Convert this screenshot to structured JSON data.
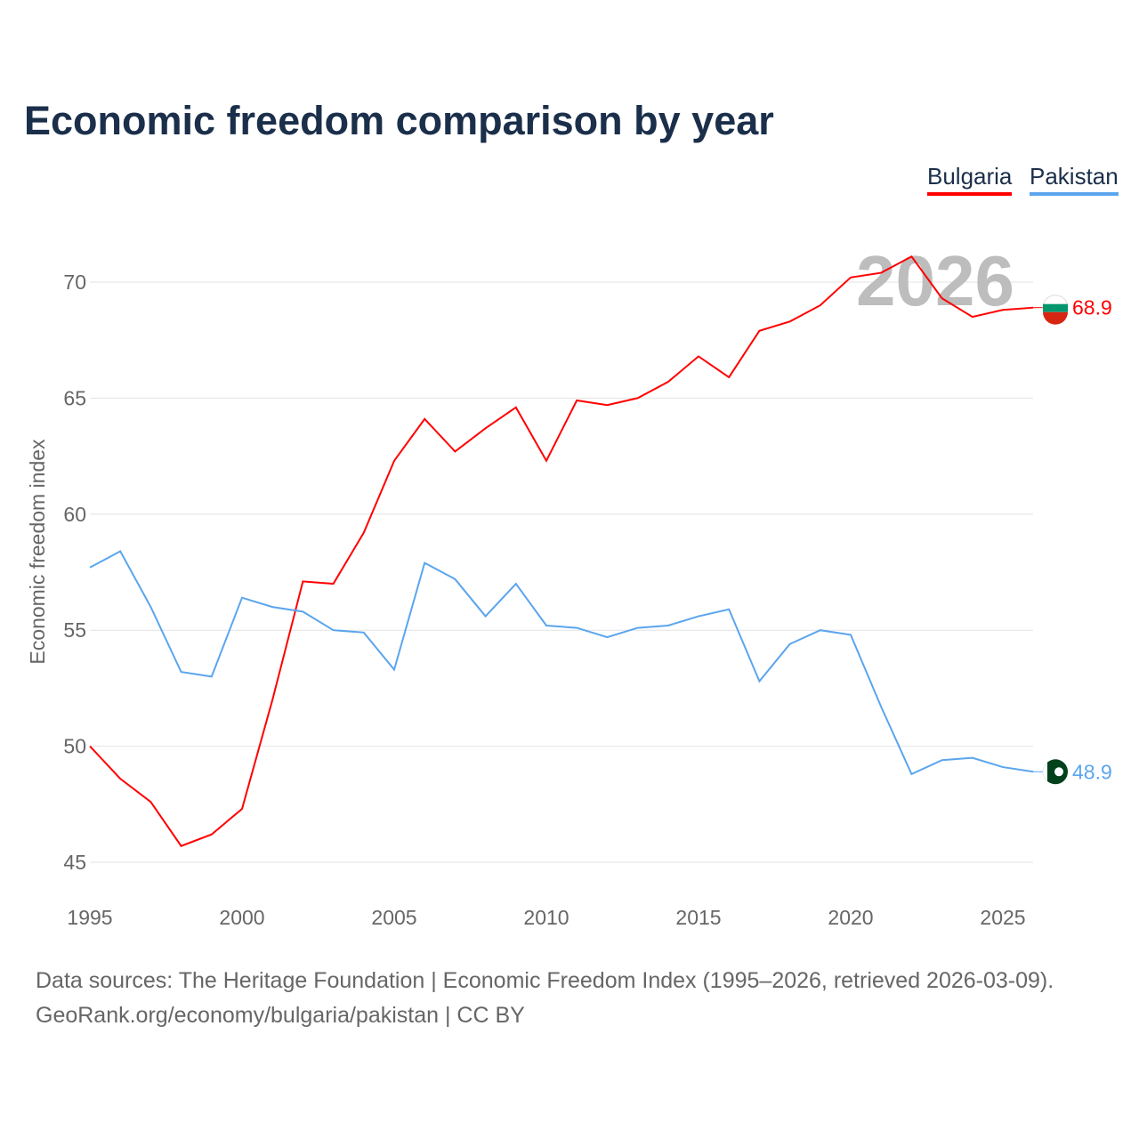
{
  "title": "Economic freedom comparison by year",
  "footer": {
    "line1": "Data sources: The Heritage Foundation | Economic Freedom Index (1995–2026, retrieved 2026-03-09).",
    "line2": "GeoRank.org/economy/bulgaria/pakistan | CC BY"
  },
  "chart_data": {
    "type": "line",
    "title": "Economic freedom comparison by year",
    "xlabel": "",
    "ylabel": "Economic freedom index",
    "xlim": [
      1995,
      2026
    ],
    "ylim": [
      45,
      72.5
    ],
    "xticks": [
      1995,
      2000,
      2005,
      2010,
      2015,
      2020,
      2025
    ],
    "yticks": [
      45,
      50,
      55,
      60,
      65,
      70
    ],
    "grid": true,
    "legend_position": "top-right",
    "watermark": "2026",
    "x": [
      1995,
      1996,
      1997,
      1998,
      1999,
      2000,
      2001,
      2002,
      2003,
      2004,
      2005,
      2006,
      2007,
      2008,
      2009,
      2010,
      2011,
      2012,
      2013,
      2014,
      2015,
      2016,
      2017,
      2018,
      2019,
      2020,
      2021,
      2022,
      2023,
      2024,
      2025,
      2026
    ],
    "series": [
      {
        "name": "Bulgaria",
        "color": "#ff0000",
        "end_label": "68.9",
        "values": [
          50.0,
          48.6,
          47.6,
          45.7,
          46.2,
          47.3,
          52.0,
          57.1,
          57.0,
          59.2,
          62.3,
          64.1,
          62.7,
          63.7,
          64.6,
          62.3,
          64.9,
          64.7,
          65.0,
          65.7,
          66.8,
          65.9,
          67.9,
          68.3,
          69.0,
          70.2,
          70.4,
          71.1,
          69.3,
          68.5,
          68.8,
          68.9
        ]
      },
      {
        "name": "Pakistan",
        "color": "#5aa5ee",
        "end_label": "48.9",
        "values": [
          57.7,
          58.4,
          56.0,
          53.2,
          53.0,
          56.4,
          56.0,
          55.8,
          55.0,
          54.9,
          53.3,
          57.9,
          57.2,
          55.6,
          57.0,
          55.2,
          55.1,
          54.7,
          55.1,
          55.2,
          55.6,
          55.9,
          52.8,
          54.4,
          55.0,
          54.8,
          51.7,
          48.8,
          49.4,
          49.5,
          49.1,
          48.9
        ]
      }
    ]
  }
}
